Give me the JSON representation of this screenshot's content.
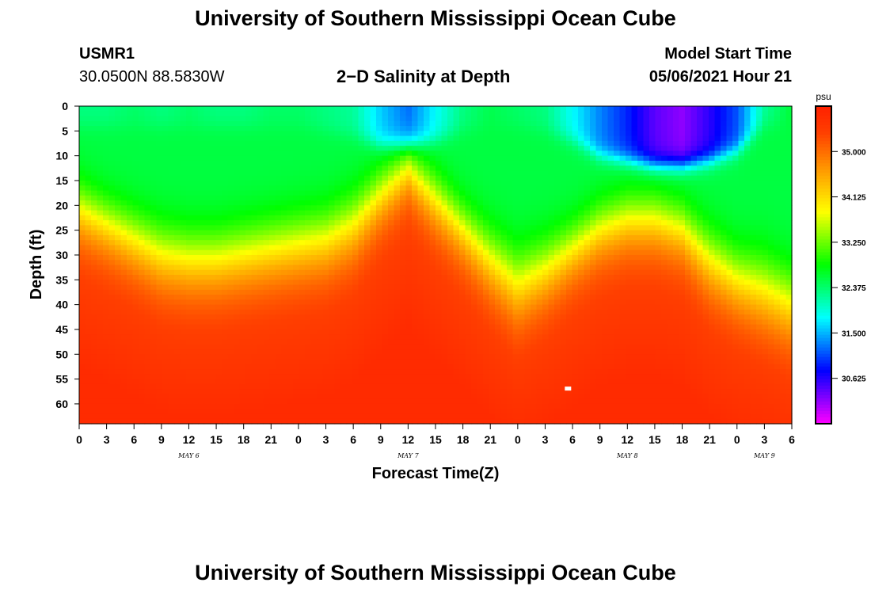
{
  "header": {
    "title": "University of Southern Mississippi Ocean Cube",
    "station_id": "USMR1",
    "coords": "30.0500N  88.5830W",
    "plot_title": "2−D Salinity at Depth",
    "model_start_label": "Model Start Time",
    "model_start_value": "05/06/2021 Hour 21"
  },
  "footer": {
    "title": "University of Southern Mississippi Ocean Cube"
  },
  "chart_data": {
    "type": "heatmap",
    "title": "2−D Salinity at Depth",
    "xlabel": "Forecast Time(Z)",
    "ylabel": "Depth (ft)",
    "units": "psu",
    "x_range_hours": [
      0,
      78
    ],
    "y_range_ft": [
      0,
      64
    ],
    "x_tick_labels": [
      "0",
      "3",
      "6",
      "9",
      "12",
      "15",
      "18",
      "21",
      "0",
      "3",
      "6",
      "9",
      "12",
      "15",
      "18",
      "21",
      "0",
      "3",
      "6",
      "9",
      "12",
      "15",
      "18",
      "21",
      "0",
      "3",
      "6"
    ],
    "day_labels": [
      {
        "label": "MAY 6",
        "x_hour": 12
      },
      {
        "label": "MAY 7",
        "x_hour": 36
      },
      {
        "label": "MAY 8",
        "x_hour": 60
      },
      {
        "label": "MAY 9",
        "x_hour": 75
      }
    ],
    "y_ticks": [
      0,
      5,
      10,
      15,
      20,
      25,
      30,
      35,
      40,
      45,
      50,
      55,
      60
    ],
    "colorbar": {
      "label": "psu",
      "min": 29.75,
      "max": 35.875,
      "ticks": [
        "35.000",
        "34.125",
        "33.250",
        "32.375",
        "31.500",
        "30.625"
      ],
      "tick_values": [
        35.0,
        34.125,
        33.25,
        32.375,
        31.5,
        30.625
      ],
      "colors": [
        "#ff00ff",
        "#7f00ff",
        "#0000ff",
        "#007fff",
        "#00ffff",
        "#00ff7f",
        "#00ff00",
        "#7fff00",
        "#ffff00",
        "#ffbf00",
        "#ff7f00",
        "#ff3f00",
        "#ff2000"
      ]
    },
    "fields": {
      "x_hours": [
        0,
        3,
        6,
        9,
        12,
        15,
        18,
        21,
        24,
        27,
        30,
        33,
        36,
        39,
        42,
        45,
        48,
        51,
        54,
        57,
        60,
        63,
        66,
        69,
        72,
        75,
        78
      ],
      "halocline_depth_ft": [
        21,
        24,
        27,
        30,
        31,
        31,
        30,
        29,
        28,
        27,
        24,
        18,
        13,
        19,
        25,
        31,
        36,
        33,
        29,
        25,
        23,
        23,
        25,
        31,
        35,
        37,
        40
      ],
      "halocline_width_ft": [
        8,
        8,
        8.5,
        9,
        9,
        9,
        9,
        9,
        9,
        9,
        9,
        8,
        7,
        8,
        8,
        9,
        10,
        9,
        8,
        8,
        8,
        8,
        8,
        9,
        9,
        10,
        10
      ],
      "surface_psu": [
        32.3,
        32.3,
        32.4,
        32.3,
        32.4,
        32.3,
        32.3,
        32.4,
        32.4,
        32.3,
        32.2,
        31.6,
        31.2,
        31.8,
        32.3,
        32.5,
        32.4,
        32.3,
        31.8,
        31.3,
        30.9,
        30.4,
        30.2,
        30.6,
        31.1,
        32.2,
        32.6
      ],
      "fresh_depth_ft": [
        4,
        4,
        4,
        4,
        4,
        4,
        4,
        4,
        4,
        5,
        6,
        8,
        8,
        7,
        5,
        4,
        4,
        5,
        7,
        10,
        11,
        12,
        12,
        11,
        9,
        4,
        3
      ]
    },
    "annotations": [
      {
        "type": "marker",
        "x_hour": 53.5,
        "depth_ft": 57,
        "color": "#ffffff"
      }
    ]
  }
}
